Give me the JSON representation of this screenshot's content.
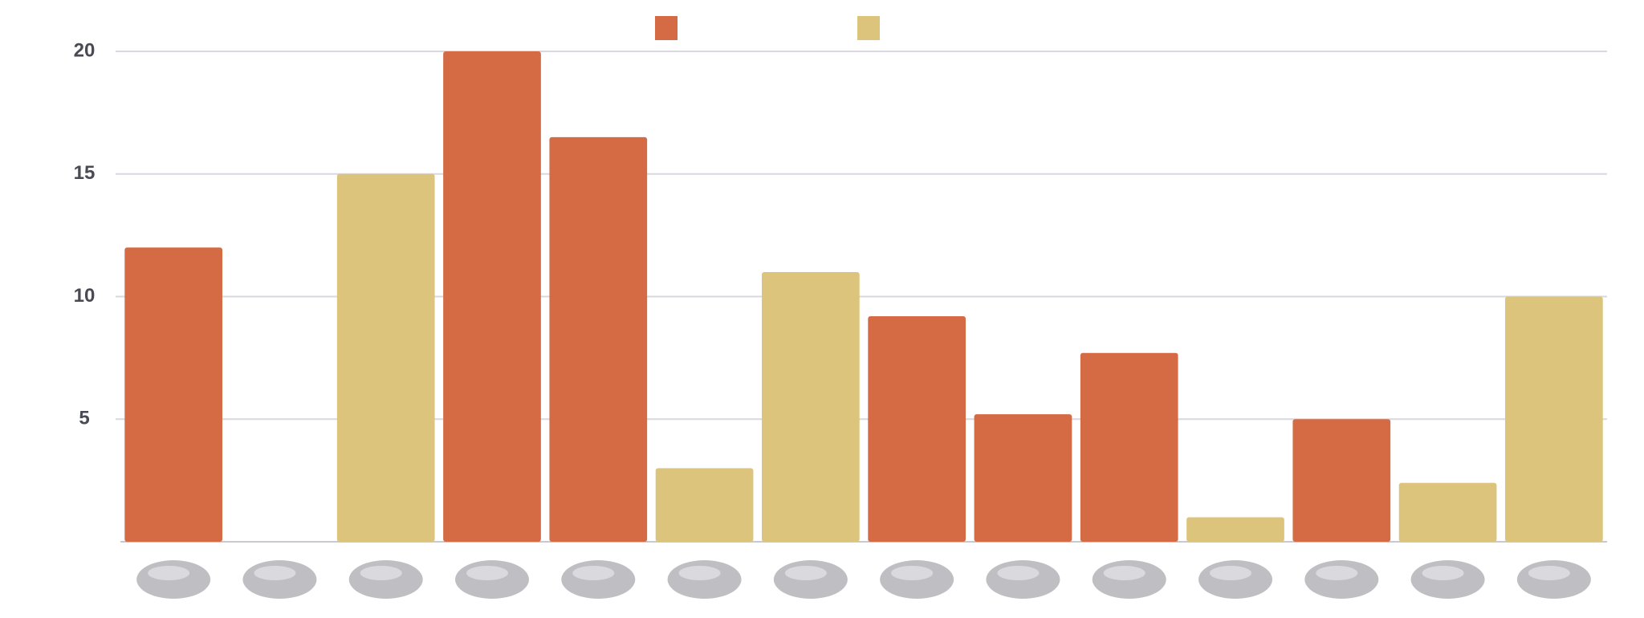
{
  "chart_data": {
    "type": "bar",
    "categories": [
      null,
      null,
      null,
      null,
      null,
      null,
      null,
      null,
      null,
      null,
      null,
      null,
      null,
      null
    ],
    "series": [
      {
        "color": "#d46b45",
        "values": [
          12,
          null,
          null,
          20,
          16.5,
          null,
          null,
          9.2,
          5.2,
          7.7,
          null,
          5,
          null,
          null
        ]
      },
      {
        "color": "#dcc47c",
        "values": [
          null,
          null,
          15,
          null,
          null,
          3,
          11,
          null,
          null,
          null,
          1,
          null,
          2.4,
          10
        ]
      }
    ],
    "ylim": [
      0,
      20
    ],
    "yticks": [
      5,
      10,
      15,
      20
    ],
    "grid": true
  }
}
